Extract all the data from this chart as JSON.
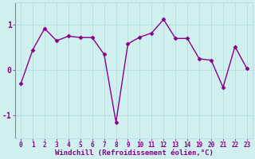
{
  "x_indices": [
    0,
    1,
    2,
    3,
    4,
    5,
    6,
    7,
    8,
    9,
    10,
    11,
    12,
    13,
    14,
    15,
    16,
    17,
    18,
    19
  ],
  "y": [
    -0.3,
    0.45,
    0.92,
    0.65,
    0.75,
    0.72,
    0.72,
    0.35,
    -1.15,
    0.58,
    0.73,
    0.82,
    1.12,
    0.7,
    0.7,
    0.25,
    0.22,
    -0.38,
    0.52,
    0.04
  ],
  "x_labels": [
    "0",
    "1",
    "2",
    "3",
    "4",
    "5",
    "6",
    "7",
    "8",
    "9",
    "10",
    "11",
    "12",
    "13",
    "14",
    "19",
    "20",
    "21",
    "22",
    "23"
  ],
  "line_color": "#880088",
  "marker": "D",
  "marker_size": 2.5,
  "bg_color": "#d0f0f0",
  "grid_color": "#b8e0e0",
  "xlabel": "Windchill (Refroidissement éolien,°C)",
  "ylim": [
    -1.5,
    1.5
  ],
  "yticks": [
    -1,
    0,
    1
  ],
  "line_width": 1.0,
  "font_color": "#880088",
  "tick_fontsize": 5.5,
  "xlabel_fontsize": 6.5,
  "ytick_fontsize": 7
}
